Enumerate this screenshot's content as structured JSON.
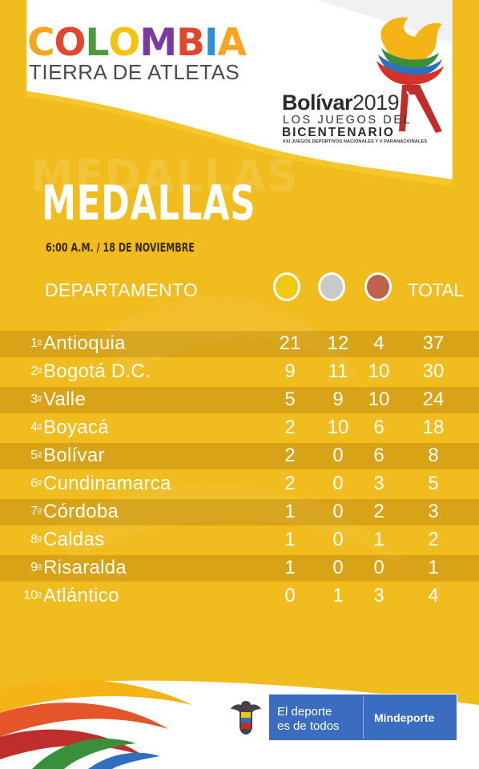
{
  "brand": {
    "letters": [
      {
        "ch": "C",
        "color": "#f7a51c"
      },
      {
        "ch": "O",
        "color": "#e2462d"
      },
      {
        "ch": "L",
        "color": "#4b9b3c"
      },
      {
        "ch": "O",
        "color": "#f2c40f"
      },
      {
        "ch": "M",
        "color": "#7b3aa0"
      },
      {
        "ch": "B",
        "color": "#e2462d"
      },
      {
        "ch": "I",
        "color": "#2f8fd0"
      },
      {
        "ch": "A",
        "color": "#f7a51c"
      }
    ],
    "tagline": "TIERRA DE ATLETAS"
  },
  "games": {
    "name": "Bolívar",
    "year": "2019",
    "line1": "LOS JUEGOS DEL",
    "line2": "BICENTENARIO",
    "line3": "XXI JUEGOS DEPORTIVOS NACIONALES Y V PARANACIONALES"
  },
  "title": "MEDALLAS",
  "title_watermark": "MEDALLAS",
  "timestamp": "6:00 A.M. / 18 DE NOVIEMBRE",
  "table": {
    "header_department": "DEPARTAMENTO",
    "header_total": "TOTAL",
    "medal_colors": {
      "gold": "#f2c811",
      "silver": "#c9c9c9",
      "bronze": "#c0614a"
    },
    "rows": [
      {
        "rank": "1",
        "sup": "o",
        "name": "Antioquia",
        "gold": "21",
        "silver": "12",
        "bronze": "4",
        "total": "37"
      },
      {
        "rank": "2",
        "sup": "o",
        "name": "Bogotá D.C.",
        "gold": "9",
        "silver": "11",
        "bronze": "10",
        "total": "30"
      },
      {
        "rank": "3",
        "sup": "o",
        "name": "Valle",
        "gold": "5",
        "silver": "9",
        "bronze": "10",
        "total": "24"
      },
      {
        "rank": "4",
        "sup": "o",
        "name": "Boyacá",
        "gold": "2",
        "silver": "10",
        "bronze": "6",
        "total": "18"
      },
      {
        "rank": "5",
        "sup": "o",
        "name": "Bolívar",
        "gold": "2",
        "silver": "0",
        "bronze": "6",
        "total": "8"
      },
      {
        "rank": "6",
        "sup": "o",
        "name": "Cundinamarca",
        "gold": "2",
        "silver": "0",
        "bronze": "3",
        "total": "5"
      },
      {
        "rank": "7",
        "sup": "o",
        "name": "Córdoba",
        "gold": "1",
        "silver": "0",
        "bronze": "2",
        "total": "3"
      },
      {
        "rank": "8",
        "sup": "o",
        "name": "Caldas",
        "gold": "1",
        "silver": "0",
        "bronze": "1",
        "total": "2"
      },
      {
        "rank": "9",
        "sup": "o",
        "name": "Risaralda",
        "gold": "1",
        "silver": "0",
        "bronze": "0",
        "total": "1"
      },
      {
        "rank": "10",
        "sup": "o",
        "name": "Atlántico",
        "gold": "0",
        "silver": "1",
        "bronze": "3",
        "total": "4"
      }
    ]
  },
  "footer": {
    "slogan_line1": "El deporte",
    "slogan_line2": "es de todos",
    "ministry": "Mindeporte",
    "seal_icon": "colombia-coat-of-arms-icon"
  },
  "colors": {
    "background": "#f1bc1d",
    "ministry_blue": "#3a6cc0"
  }
}
